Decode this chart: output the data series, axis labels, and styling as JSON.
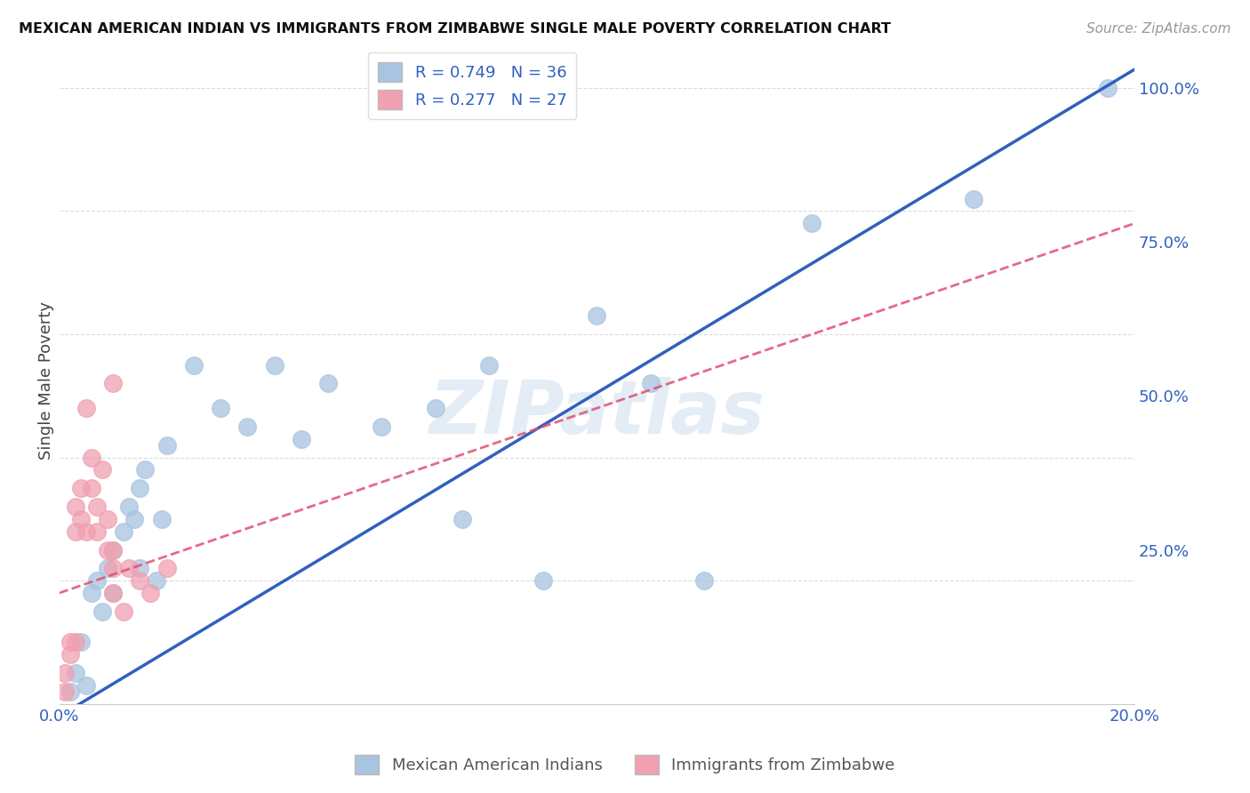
{
  "title": "MEXICAN AMERICAN INDIAN VS IMMIGRANTS FROM ZIMBABWE SINGLE MALE POVERTY CORRELATION CHART",
  "source": "Source: ZipAtlas.com",
  "ylabel": "Single Male Poverty",
  "blue_label": "Mexican American Indians",
  "pink_label": "Immigrants from Zimbabwe",
  "blue_R": 0.749,
  "blue_N": 36,
  "pink_R": 0.277,
  "pink_N": 27,
  "blue_color": "#a8c4e0",
  "blue_line_color": "#3060c0",
  "pink_color": "#f0a0b0",
  "pink_line_color": "#e05070",
  "watermark": "ZIPatlas",
  "blue_points_x": [
    0.2,
    0.3,
    0.4,
    0.5,
    0.6,
    0.7,
    0.8,
    0.9,
    1.0,
    1.0,
    1.2,
    1.3,
    1.4,
    1.5,
    1.5,
    1.6,
    1.8,
    1.9,
    2.0,
    2.5,
    3.0,
    3.5,
    4.0,
    4.5,
    5.0,
    6.0,
    7.0,
    7.5,
    8.0,
    9.0,
    10.0,
    11.0,
    12.0,
    14.0,
    17.0,
    19.5
  ],
  "blue_points_y": [
    2.0,
    5.0,
    10.0,
    3.0,
    18.0,
    20.0,
    15.0,
    22.0,
    25.0,
    18.0,
    28.0,
    32.0,
    30.0,
    35.0,
    22.0,
    38.0,
    20.0,
    30.0,
    42.0,
    55.0,
    48.0,
    45.0,
    55.0,
    43.0,
    52.0,
    45.0,
    48.0,
    30.0,
    55.0,
    20.0,
    63.0,
    52.0,
    20.0,
    78.0,
    82.0,
    100.0
  ],
  "pink_points_x": [
    0.1,
    0.1,
    0.2,
    0.2,
    0.3,
    0.3,
    0.3,
    0.4,
    0.4,
    0.5,
    0.5,
    0.6,
    0.6,
    0.7,
    0.7,
    0.8,
    0.9,
    0.9,
    1.0,
    1.0,
    1.0,
    1.0,
    1.2,
    1.3,
    1.5,
    1.7,
    2.0
  ],
  "pink_points_y": [
    2.0,
    5.0,
    8.0,
    10.0,
    10.0,
    28.0,
    32.0,
    30.0,
    35.0,
    28.0,
    48.0,
    35.0,
    40.0,
    32.0,
    28.0,
    38.0,
    25.0,
    30.0,
    22.0,
    18.0,
    25.0,
    52.0,
    15.0,
    22.0,
    20.0,
    18.0,
    22.0
  ],
  "xlim_pct": [
    0.0,
    20.0
  ],
  "ylim_pct": [
    0.0,
    105.0
  ],
  "yticks_pct": [
    0.0,
    25.0,
    50.0,
    75.0,
    100.0
  ],
  "ytick_labels": [
    "",
    "25.0%",
    "50.0%",
    "75.0%",
    "100.0%"
  ],
  "xticks_pct": [
    0.0,
    5.0,
    10.0,
    15.0,
    20.0
  ],
  "xtick_labels": [
    "0.0%",
    "",
    "",
    "",
    "20.0%"
  ],
  "blue_line_x": [
    0.0,
    20.0
  ],
  "blue_line_y": [
    -2.0,
    103.0
  ],
  "pink_line_x": [
    0.0,
    20.0
  ],
  "pink_line_y": [
    18.0,
    78.0
  ]
}
